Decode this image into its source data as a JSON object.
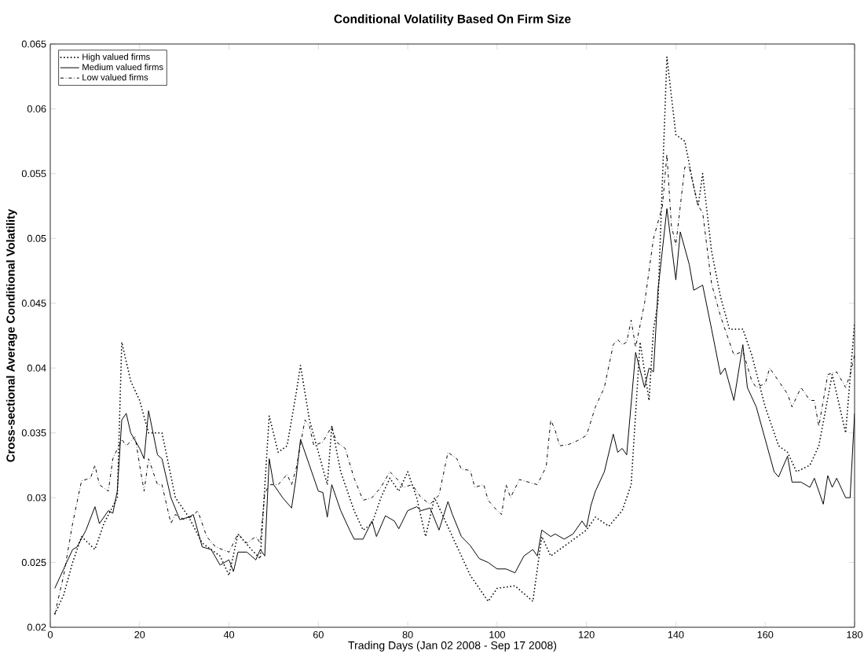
{
  "chart_data": {
    "type": "line",
    "title": "Conditional Volatility Based On Firm Size",
    "xlabel": "Trading Days (Jan 02 2008 - Sep 17 2008)",
    "ylabel": "Cross-sectional Average Conditional Volatility",
    "xlim": [
      0,
      180
    ],
    "ylim": [
      0.02,
      0.065
    ],
    "xticks": [
      0,
      20,
      40,
      60,
      80,
      100,
      120,
      140,
      160,
      180
    ],
    "yticks": [
      0.02,
      0.025,
      0.03,
      0.035,
      0.04,
      0.045,
      0.05,
      0.055,
      0.06,
      0.065
    ],
    "legend": "top left",
    "series": [
      {
        "name": "High valued firms",
        "color": "#000000",
        "line_style": "dotted",
        "x": [
          1,
          3,
          5,
          7,
          10,
          12,
          15,
          16,
          18,
          20,
          22,
          25,
          28,
          31,
          34,
          38,
          40,
          42,
          45,
          47,
          49,
          51,
          53,
          55,
          56,
          58,
          60,
          62,
          63,
          65,
          68,
          70,
          72,
          74,
          76,
          78,
          80,
          82,
          84,
          86,
          88,
          90,
          94,
          98,
          100,
          104,
          108,
          110,
          112,
          116,
          120,
          122,
          125,
          128,
          130,
          132,
          134,
          135,
          136,
          138,
          140,
          142,
          144,
          145,
          146,
          148,
          150,
          152,
          155,
          157,
          160,
          163,
          165,
          167,
          170,
          172,
          175,
          178,
          180
        ],
        "values": [
          0.021,
          0.0225,
          0.025,
          0.027,
          0.026,
          0.028,
          0.03,
          0.042,
          0.039,
          0.0375,
          0.035,
          0.035,
          0.03,
          0.0285,
          0.0265,
          0.0255,
          0.024,
          0.0272,
          0.026,
          0.0253,
          0.0363,
          0.0335,
          0.034,
          0.038,
          0.0402,
          0.036,
          0.0335,
          0.031,
          0.0355,
          0.032,
          0.029,
          0.0275,
          0.028,
          0.03,
          0.0315,
          0.0305,
          0.032,
          0.03,
          0.027,
          0.03,
          0.0285,
          0.027,
          0.024,
          0.022,
          0.023,
          0.0232,
          0.022,
          0.027,
          0.0255,
          0.0265,
          0.0275,
          0.0285,
          0.0278,
          0.029,
          0.031,
          0.042,
          0.0375,
          0.043,
          0.045,
          0.064,
          0.058,
          0.0575,
          0.054,
          0.0525,
          0.055,
          0.049,
          0.0455,
          0.043,
          0.043,
          0.041,
          0.037,
          0.034,
          0.0335,
          0.032,
          0.0325,
          0.034,
          0.0395,
          0.035,
          0.0435
        ]
      },
      {
        "name": "Medium valued firms",
        "color": "#000000",
        "line_style": "solid",
        "x": [
          1,
          3,
          5,
          6,
          8,
          10,
          11,
          13,
          14,
          15,
          16,
          17,
          18,
          20,
          21,
          22,
          24,
          25,
          27,
          29,
          31,
          32,
          34,
          36,
          38,
          40,
          41,
          42,
          44,
          46,
          47,
          48,
          49,
          50,
          52,
          54,
          55,
          56,
          58,
          60,
          61,
          62,
          63,
          65,
          67,
          68,
          70,
          72,
          73,
          75,
          77,
          78,
          80,
          82,
          83,
          85,
          87,
          89,
          90,
          92,
          94,
          96,
          98,
          100,
          102,
          104,
          106,
          108,
          109,
          110,
          112,
          113,
          115,
          117,
          119,
          120,
          121,
          122,
          124,
          126,
          127,
          128,
          129,
          131,
          133,
          134,
          135,
          136,
          138,
          140,
          141,
          143,
          144,
          146,
          148,
          150,
          151,
          153,
          155,
          156,
          158,
          160,
          162,
          163,
          165,
          166,
          168,
          170,
          171,
          173,
          174,
          175,
          176,
          178,
          179,
          180
        ],
        "values": [
          0.023,
          0.0245,
          0.026,
          0.0262,
          0.0275,
          0.0293,
          0.028,
          0.029,
          0.0288,
          0.0305,
          0.036,
          0.0365,
          0.035,
          0.0338,
          0.033,
          0.0367,
          0.0333,
          0.033,
          0.03,
          0.0283,
          0.0285,
          0.0287,
          0.0262,
          0.026,
          0.0248,
          0.0252,
          0.0243,
          0.0258,
          0.0258,
          0.0252,
          0.026,
          0.0255,
          0.033,
          0.031,
          0.03,
          0.0292,
          0.0315,
          0.0345,
          0.0325,
          0.0305,
          0.0304,
          0.0285,
          0.031,
          0.029,
          0.0275,
          0.0268,
          0.0268,
          0.0282,
          0.027,
          0.0286,
          0.0282,
          0.0276,
          0.029,
          0.0293,
          0.029,
          0.0292,
          0.0275,
          0.0297,
          0.0287,
          0.027,
          0.0263,
          0.0253,
          0.025,
          0.0245,
          0.0245,
          0.0242,
          0.0255,
          0.026,
          0.0255,
          0.0275,
          0.027,
          0.0272,
          0.0268,
          0.0272,
          0.0282,
          0.0277,
          0.0294,
          0.0305,
          0.032,
          0.0349,
          0.0335,
          0.0338,
          0.0333,
          0.0412,
          0.0385,
          0.04,
          0.0397,
          0.046,
          0.0523,
          0.0468,
          0.0505,
          0.048,
          0.046,
          0.0464,
          0.043,
          0.0395,
          0.04,
          0.0375,
          0.0418,
          0.0385,
          0.037,
          0.0345,
          0.032,
          0.0316,
          0.0332,
          0.0312,
          0.0312,
          0.0308,
          0.0315,
          0.0295,
          0.0317,
          0.0308,
          0.0315,
          0.03,
          0.03,
          0.0365
        ]
      },
      {
        "name": "Low valued firms",
        "color": "#000000",
        "line_style": "dashdot",
        "x": [
          1,
          3,
          5,
          7,
          9,
          10,
          11,
          13,
          14,
          16,
          17,
          19,
          20,
          21,
          22,
          24,
          25,
          27,
          28,
          30,
          32,
          33,
          35,
          37,
          40,
          42,
          44,
          46,
          47,
          48,
          49,
          51,
          53,
          54,
          55,
          57,
          58,
          59,
          61,
          63,
          64,
          66,
          68,
          70,
          72,
          74,
          76,
          78,
          79,
          81,
          83,
          85,
          87,
          89,
          91,
          92,
          94,
          95,
          97,
          98,
          100,
          101,
          102,
          103,
          105,
          107,
          109,
          111,
          112,
          113,
          114,
          116,
          118,
          120,
          122,
          124,
          126,
          127,
          128,
          129,
          130,
          131,
          133,
          135,
          137,
          138,
          139,
          140,
          142,
          143,
          145,
          146,
          148,
          150,
          152,
          153,
          155,
          157,
          158,
          160,
          161,
          163,
          165,
          166,
          168,
          170,
          171,
          172,
          174,
          176,
          178,
          179,
          180
        ],
        "values": [
          0.021,
          0.024,
          0.028,
          0.0313,
          0.0315,
          0.0325,
          0.031,
          0.0305,
          0.033,
          0.0345,
          0.034,
          0.0347,
          0.0325,
          0.0305,
          0.033,
          0.031,
          0.031,
          0.028,
          0.0287,
          0.0283,
          0.0286,
          0.029,
          0.027,
          0.0262,
          0.0258,
          0.0272,
          0.0265,
          0.027,
          0.0265,
          0.0303,
          0.031,
          0.031,
          0.0318,
          0.031,
          0.0322,
          0.036,
          0.0355,
          0.034,
          0.0343,
          0.0355,
          0.0343,
          0.0338,
          0.0315,
          0.0298,
          0.03,
          0.0308,
          0.032,
          0.0313,
          0.0308,
          0.031,
          0.03,
          0.0295,
          0.0302,
          0.0335,
          0.033,
          0.0322,
          0.0321,
          0.0308,
          0.031,
          0.0298,
          0.029,
          0.0287,
          0.031,
          0.03,
          0.0314,
          0.0312,
          0.031,
          0.0324,
          0.036,
          0.0352,
          0.034,
          0.0341,
          0.0344,
          0.0348,
          0.037,
          0.0385,
          0.0418,
          0.0422,
          0.0418,
          0.042,
          0.0437,
          0.0416,
          0.045,
          0.05,
          0.0525,
          0.0565,
          0.051,
          0.0495,
          0.0555,
          0.0555,
          0.0525,
          0.052,
          0.0465,
          0.044,
          0.042,
          0.041,
          0.0413,
          0.039,
          0.0385,
          0.0388,
          0.04,
          0.039,
          0.038,
          0.037,
          0.0385,
          0.0375,
          0.0375,
          0.0355,
          0.0395,
          0.0397,
          0.0385,
          0.0395,
          0.041
        ]
      }
    ]
  }
}
